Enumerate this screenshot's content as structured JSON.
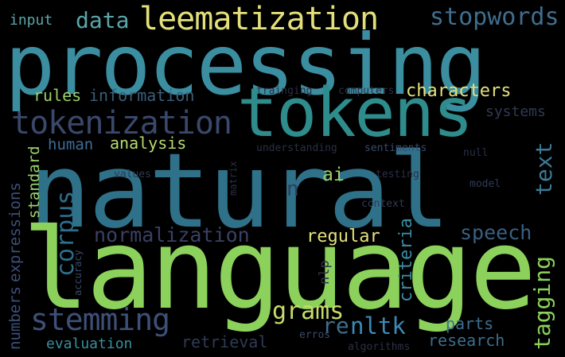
{
  "words": [
    {
      "text": "natural",
      "color": "#2f7189"
    },
    {
      "text": "language",
      "color": "#8bd15b"
    },
    {
      "text": "processing",
      "color": "#3b8ea0"
    },
    {
      "text": "tokens",
      "color": "#2f8c8c"
    },
    {
      "text": "leematization",
      "color": "#e3e07b"
    },
    {
      "text": "tokenization",
      "color": "#39486b"
    },
    {
      "text": "stemming",
      "color": "#3d5078"
    },
    {
      "text": "normalization",
      "color": "#3a4063"
    },
    {
      "text": "grams",
      "color": "#c7dc6a"
    },
    {
      "text": "nltk",
      "color": "#3b8ab5"
    },
    {
      "text": "data",
      "color": "#5ba5a8"
    },
    {
      "text": "stopwords",
      "color": "#3f6e8f"
    },
    {
      "text": "corpus",
      "color": "#2c6e8c"
    },
    {
      "text": "characters",
      "color": "#e3e07b"
    },
    {
      "text": "information",
      "color": "#3a5e7a"
    },
    {
      "text": "rules",
      "color": "#9ad06a"
    },
    {
      "text": "analysis",
      "color": "#b9dc6e"
    },
    {
      "text": "human",
      "color": "#3d6c96"
    },
    {
      "text": "regular",
      "color": "#e3e07b"
    },
    {
      "text": "speech",
      "color": "#3b5f82"
    },
    {
      "text": "parts",
      "color": "#3f6e8f"
    },
    {
      "text": "research",
      "color": "#3a6f8e"
    },
    {
      "text": "evaluation",
      "color": "#3a8fa0"
    },
    {
      "text": "retrieval",
      "color": "#2e3a55"
    },
    {
      "text": "re",
      "color": "#3f6e8f"
    },
    {
      "text": "text",
      "color": "#3d7a96"
    },
    {
      "text": "tagging",
      "color": "#8bd15b"
    },
    {
      "text": "criteria",
      "color": "#3c8ca3"
    },
    {
      "text": "expressions",
      "color": "#3d4f7a"
    },
    {
      "text": "standard",
      "color": "#9ad06a"
    },
    {
      "text": "numbers",
      "color": "#3d4f7a"
    },
    {
      "text": "systems",
      "color": "#2e3a55"
    },
    {
      "text": "input",
      "color": "#5ba5a8"
    },
    {
      "text": "ai",
      "color": "#9ad06a"
    },
    {
      "text": "n",
      "color": "#2e4060"
    },
    {
      "text": "nlp",
      "color": "#2e3048"
    },
    {
      "text": "trainging",
      "color": "#2b2f45"
    },
    {
      "text": "computers",
      "color": "#2b2f45"
    },
    {
      "text": "understanding",
      "color": "#2b2f45"
    },
    {
      "text": "sentiments",
      "color": "#3a4a6a"
    },
    {
      "text": "null",
      "color": "#2b2f45"
    },
    {
      "text": "testing",
      "color": "#2b2f45"
    },
    {
      "text": "values",
      "color": "#2e3a55"
    },
    {
      "text": "model",
      "color": "#2e3a55"
    },
    {
      "text": "context",
      "color": "#2e3a55"
    },
    {
      "text": "matrix",
      "color": "#2b2f45"
    },
    {
      "text": "accuracy",
      "color": "#3a4a6a"
    },
    {
      "text": "erros",
      "color": "#3a4a6a"
    },
    {
      "text": "algorithms",
      "color": "#2b2f45"
    }
  ]
}
